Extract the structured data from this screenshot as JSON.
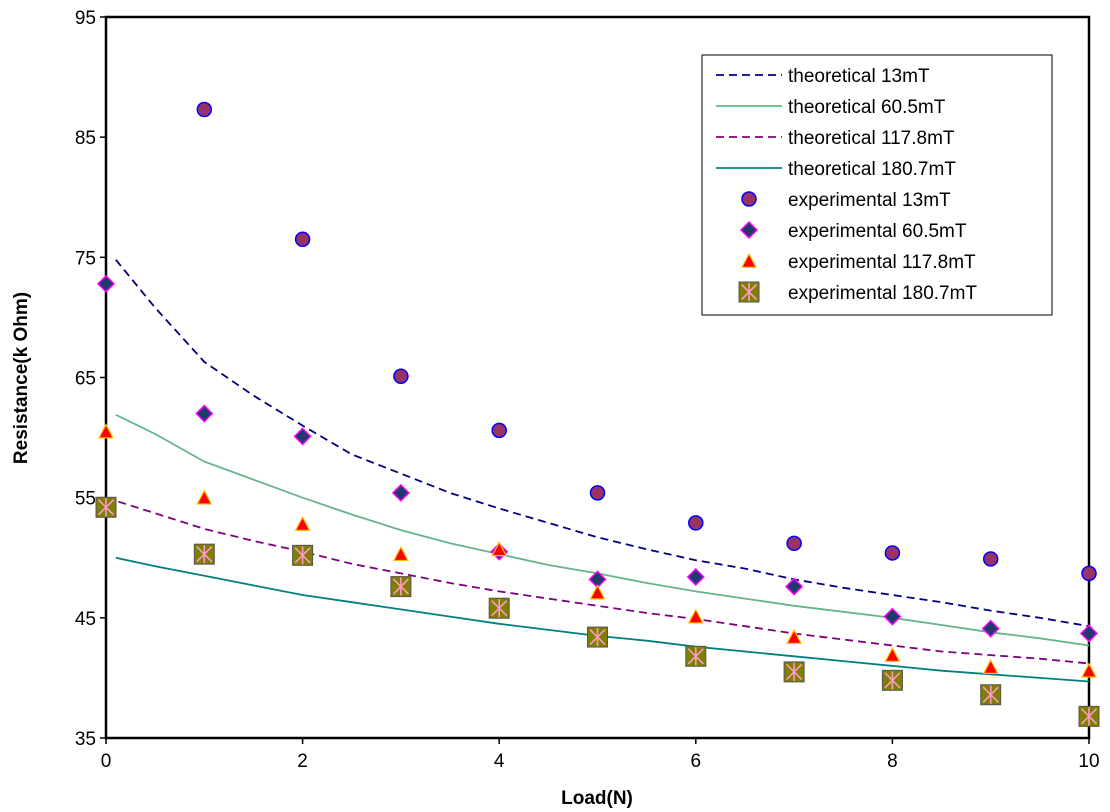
{
  "chart_data": {
    "type": "scatter",
    "title": "",
    "xlabel": "Load(N)",
    "ylabel": "Resistance(k Ohm)",
    "xlim": [
      0,
      10
    ],
    "ylim": [
      35,
      95
    ],
    "xticks": [
      0,
      2,
      4,
      6,
      8,
      10
    ],
    "yticks": [
      35,
      45,
      55,
      65,
      75,
      85,
      95
    ],
    "xtick_labels": [
      "0",
      "2",
      "4",
      "6",
      "8",
      "10"
    ],
    "ytick_labels": [
      "35",
      "45",
      "55",
      "65",
      "75",
      "85",
      "95"
    ],
    "grid": false,
    "legend_position": "top-right",
    "series": [
      {
        "name": "theoretical 13mT",
        "kind": "line",
        "style": "dashed",
        "color": "#000080",
        "x": [
          0.1,
          0.5,
          1,
          1.5,
          2,
          2.5,
          3,
          3.5,
          4,
          4.5,
          5,
          5.5,
          6,
          6.5,
          7,
          7.5,
          8,
          8.5,
          9,
          9.5,
          10
        ],
        "y": [
          74.8,
          70.8,
          66.3,
          63.5,
          61.0,
          58.6,
          57.0,
          55.4,
          54.1,
          52.9,
          51.7,
          50.7,
          49.8,
          49.1,
          48.2,
          47.5,
          46.9,
          46.3,
          45.6,
          45.0,
          44.3
        ]
      },
      {
        "name": "theoretical 60.5mT",
        "kind": "line",
        "style": "solid",
        "color": "#66B48C",
        "x": [
          0.1,
          0.5,
          1,
          1.5,
          2,
          2.5,
          3,
          3.5,
          4,
          4.5,
          5,
          5.5,
          6,
          6.5,
          7,
          7.5,
          8,
          8.5,
          9,
          9.5,
          10
        ],
        "y": [
          61.9,
          60.3,
          58.0,
          56.5,
          55.0,
          53.6,
          52.3,
          51.2,
          50.3,
          49.4,
          48.7,
          47.9,
          47.2,
          46.6,
          46.0,
          45.5,
          45.0,
          44.4,
          43.8,
          43.3,
          42.7
        ]
      },
      {
        "name": "theoretical 117.8mT",
        "kind": "line",
        "style": "dashed",
        "color": "#800080",
        "x": [
          0,
          0.5,
          1,
          1.5,
          2,
          2.5,
          3,
          3.5,
          4,
          4.5,
          5,
          5.5,
          6,
          6.5,
          7,
          7.5,
          8,
          8.5,
          9,
          9.5,
          10
        ],
        "y": [
          55.0,
          53.7,
          52.4,
          51.4,
          50.5,
          49.5,
          48.7,
          47.9,
          47.2,
          46.6,
          46.0,
          45.4,
          44.9,
          44.3,
          43.7,
          43.2,
          42.7,
          42.2,
          41.9,
          41.6,
          41.2
        ]
      },
      {
        "name": "theoretical 180.7mT",
        "kind": "line",
        "style": "solid",
        "color": "#008080",
        "x": [
          0.1,
          0.5,
          1,
          1.5,
          2,
          2.5,
          3,
          3.5,
          4,
          4.5,
          5,
          5.5,
          6,
          6.5,
          7,
          7.5,
          8,
          8.5,
          9,
          9.5,
          10
        ],
        "y": [
          50.0,
          49.3,
          48.5,
          47.7,
          46.9,
          46.3,
          45.7,
          45.1,
          44.5,
          44.0,
          43.5,
          43.1,
          42.6,
          42.2,
          41.8,
          41.4,
          41.0,
          40.6,
          40.3,
          40.0,
          39.7
        ]
      },
      {
        "name": "experimental 13mT",
        "kind": "marker",
        "marker": "circle",
        "color": "#993366",
        "edge": "#0000FF",
        "x": [
          1,
          2,
          3,
          4,
          5,
          6,
          7,
          8,
          9,
          10
        ],
        "y": [
          87.3,
          76.5,
          65.1,
          60.6,
          55.4,
          52.9,
          51.2,
          50.4,
          49.9,
          48.7
        ]
      },
      {
        "name": "experimental 60.5mT",
        "kind": "marker",
        "marker": "diamond",
        "color": "#1F3B6B",
        "edge": "#FF00FF",
        "x": [
          0,
          1,
          2,
          3,
          4,
          5,
          6,
          7,
          8,
          9,
          10
        ],
        "y": [
          72.8,
          62.0,
          60.1,
          55.4,
          50.5,
          48.2,
          48.4,
          47.6,
          45.1,
          44.1,
          43.7
        ]
      },
      {
        "name": "experimental 117.8mT",
        "kind": "marker",
        "marker": "triangle",
        "color": "#FF0000",
        "edge": "#FFC000",
        "x": [
          0,
          1,
          2,
          3,
          4,
          5,
          6,
          7,
          8,
          9,
          10
        ],
        "y": [
          60.5,
          55.0,
          52.8,
          50.3,
          50.7,
          47.1,
          45.1,
          43.4,
          41.9,
          40.9,
          40.6
        ]
      },
      {
        "name": "experimental 180.7mT",
        "kind": "marker",
        "marker": "square-star",
        "color": "#808000",
        "edge": "#FF99CC",
        "x": [
          0,
          1,
          2,
          3,
          4,
          5,
          6,
          7,
          8,
          9,
          10
        ],
        "y": [
          54.2,
          50.3,
          50.2,
          47.6,
          45.8,
          43.4,
          41.8,
          40.5,
          39.8,
          38.6,
          36.8
        ]
      }
    ]
  }
}
